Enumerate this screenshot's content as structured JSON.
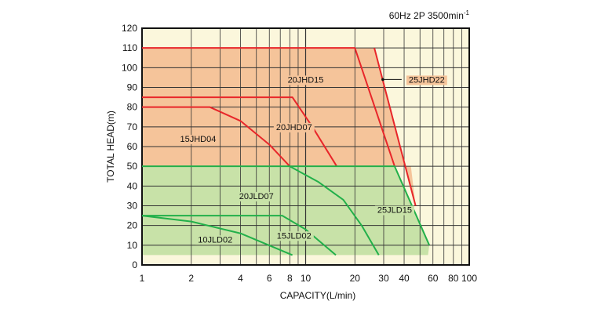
{
  "chart_data": {
    "type": "line",
    "title": "60Hz 2P 3500min",
    "title_sup": "-1",
    "xlabel": "CAPACITY(L/min)",
    "ylabel": "TOTAL HEAD(m)",
    "xscale": "log",
    "xlim": [
      1,
      100
    ],
    "ylim": [
      0,
      120
    ],
    "grid": true,
    "xticks": [
      1,
      2,
      4,
      6,
      8,
      10,
      20,
      30,
      40,
      60,
      80,
      100
    ],
    "xtick_labels": [
      "1",
      "2",
      "4",
      "6",
      "8",
      "10",
      "20",
      "30",
      "40",
      "60",
      "80",
      "100"
    ],
    "yticks": [
      0,
      10,
      20,
      30,
      40,
      50,
      60,
      70,
      80,
      90,
      100,
      110,
      120
    ],
    "ytick_labels": [
      "0",
      "10",
      "20",
      "30",
      "40",
      "50",
      "60",
      "70",
      "80",
      "90",
      "100",
      "110",
      "120"
    ],
    "regions": [
      {
        "name": "JHD range",
        "color": "#f5c49a",
        "points": [
          [
            1,
            110
          ],
          [
            26.3,
            110
          ],
          [
            47,
            30
          ],
          [
            44,
            50
          ],
          [
            1,
            50
          ]
        ]
      },
      {
        "name": "JLD range",
        "color": "#c8e2a8",
        "points": [
          [
            1,
            50
          ],
          [
            35,
            50
          ],
          [
            57,
            10
          ],
          [
            56,
            5
          ],
          [
            1,
            5
          ]
        ]
      }
    ],
    "series": [
      {
        "name": "15JHD04",
        "color": "#e8262a",
        "points": [
          [
            1,
            80
          ],
          [
            2.6,
            80
          ],
          [
            4,
            73
          ],
          [
            6,
            61
          ],
          [
            8,
            50
          ]
        ],
        "label_at": [
          2.2,
          64
        ]
      },
      {
        "name": "20JHD07",
        "color": "#e8262a",
        "points": [
          [
            1,
            85
          ],
          [
            8.3,
            85
          ],
          [
            11,
            70
          ],
          [
            15.5,
            50
          ]
        ],
        "label_at": [
          8.5,
          70
        ]
      },
      {
        "name": "20JHD15",
        "color": "#e8262a",
        "points": [
          [
            1,
            110
          ],
          [
            20,
            110
          ],
          [
            35,
            50
          ]
        ],
        "label_at": [
          10,
          94
        ]
      },
      {
        "name": "25JHD22",
        "color": "#e8262a",
        "points": [
          [
            26.3,
            110
          ],
          [
            47,
            30
          ]
        ],
        "label_at": [
          55,
          94
        ]
      },
      {
        "name": "20JLD07",
        "color": "#22b04a",
        "points": [
          [
            8,
            50
          ],
          [
            12,
            42
          ],
          [
            17,
            33
          ],
          [
            22,
            20
          ],
          [
            28,
            5
          ]
        ],
        "label_at": [
          5,
          35
        ]
      },
      {
        "name": "25JLD15",
        "color": "#22b04a",
        "points": [
          [
            1,
            50
          ],
          [
            35,
            50
          ],
          [
            57,
            10
          ]
        ],
        "label_at": [
          35,
          28
        ]
      },
      {
        "name": "15JLD02",
        "color": "#22b04a",
        "points": [
          [
            1,
            25
          ],
          [
            7.2,
            25
          ],
          [
            10,
            18
          ],
          [
            15.3,
            5
          ]
        ],
        "label_at": [
          8.5,
          15
        ]
      },
      {
        "name": "10JLD02",
        "color": "#22b04a",
        "points": [
          [
            1,
            25
          ],
          [
            2,
            22
          ],
          [
            4,
            16
          ],
          [
            8.3,
            5
          ]
        ],
        "label_at": [
          2.8,
          13
        ]
      }
    ],
    "plot_bg": "#fbf7dc",
    "grid_color": "#333333"
  }
}
